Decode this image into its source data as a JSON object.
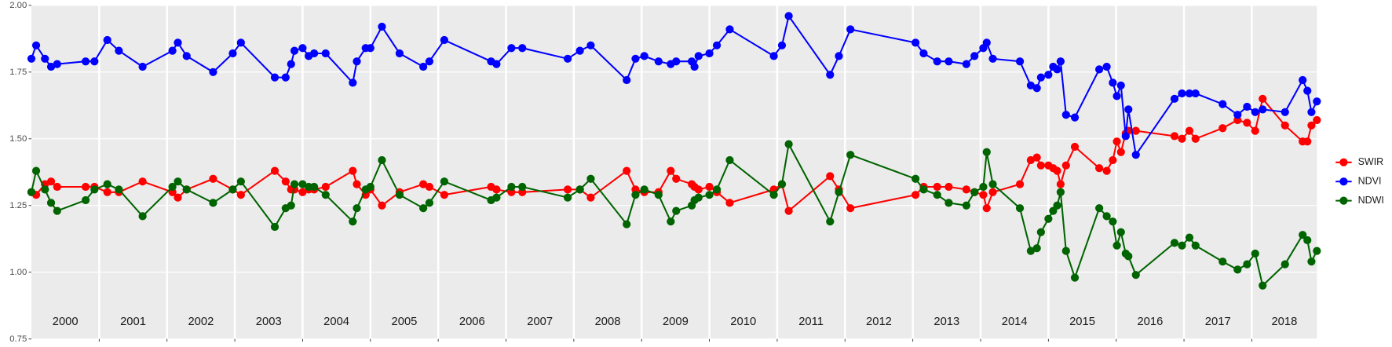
{
  "chart_data": {
    "type": "line",
    "x": [
      2000.0,
      2000.07,
      2000.2,
      2000.29,
      2000.38,
      2000.8,
      2000.93,
      2001.12,
      2001.29,
      2001.64,
      2002.08,
      2002.16,
      2002.29,
      2002.68,
      2002.97,
      2003.09,
      2003.59,
      2003.75,
      2003.83,
      2003.88,
      2004.0,
      2004.09,
      2004.17,
      2004.34,
      2004.74,
      2004.8,
      2004.93,
      2005.0,
      2005.17,
      2005.43,
      2005.78,
      2005.87,
      2006.09,
      2006.78,
      2006.86,
      2007.08,
      2007.24,
      2007.91,
      2008.09,
      2008.25,
      2008.78,
      2008.91,
      2009.04,
      2009.25,
      2009.43,
      2009.51,
      2009.74,
      2009.78,
      2009.84,
      2010.0,
      2010.11,
      2010.3,
      2010.95,
      2011.07,
      2011.17,
      2011.78,
      2011.91,
      2012.08,
      2013.04,
      2013.16,
      2013.36,
      2013.53,
      2013.79,
      2013.91,
      2014.04,
      2014.09,
      2014.18,
      2014.58,
      2014.74,
      2014.83,
      2014.89,
      2015.0,
      2015.07,
      2015.13,
      2015.18,
      2015.26,
      2015.39,
      2015.75,
      2015.86,
      2015.95,
      2016.01,
      2016.07,
      2016.14,
      2016.18,
      2016.29,
      2016.86,
      2016.97,
      2017.08,
      2017.17,
      2017.57,
      2017.79,
      2017.93,
      2018.05,
      2018.16,
      2018.49,
      2018.75,
      2018.82,
      2018.88,
      2018.96
    ],
    "series": [
      {
        "name": "SWIR",
        "color": "#ff0000",
        "values": [
          1.3,
          1.29,
          1.33,
          1.34,
          1.32,
          1.32,
          1.32,
          1.3,
          1.3,
          1.34,
          1.3,
          1.28,
          1.31,
          1.35,
          1.31,
          1.29,
          1.38,
          1.34,
          1.31,
          1.31,
          1.3,
          1.31,
          1.31,
          1.32,
          1.38,
          1.33,
          1.29,
          1.31,
          1.25,
          1.3,
          1.33,
          1.32,
          1.29,
          1.32,
          1.31,
          1.3,
          1.3,
          1.31,
          1.31,
          1.28,
          1.38,
          1.31,
          1.3,
          1.3,
          1.38,
          1.35,
          1.33,
          1.32,
          1.31,
          1.32,
          1.3,
          1.26,
          1.31,
          1.33,
          1.23,
          1.36,
          1.31,
          1.24,
          1.29,
          1.32,
          1.32,
          1.32,
          1.31,
          1.3,
          1.29,
          1.24,
          1.3,
          1.33,
          1.42,
          1.43,
          1.4,
          1.4,
          1.39,
          1.38,
          1.33,
          1.4,
          1.47,
          1.39,
          1.38,
          1.42,
          1.49,
          1.45,
          1.52,
          1.53,
          1.53,
          1.51,
          1.5,
          1.53,
          1.5,
          1.54,
          1.57,
          1.56,
          1.53,
          1.65,
          1.55,
          1.49,
          1.49,
          1.55,
          1.57
        ]
      },
      {
        "name": "NDVI",
        "color": "#0000ff",
        "values": [
          1.8,
          1.85,
          1.8,
          1.77,
          1.78,
          1.79,
          1.79,
          1.87,
          1.83,
          1.77,
          1.83,
          1.86,
          1.81,
          1.75,
          1.82,
          1.86,
          1.73,
          1.73,
          1.78,
          1.83,
          1.84,
          1.81,
          1.82,
          1.82,
          1.71,
          1.79,
          1.84,
          1.84,
          1.92,
          1.82,
          1.77,
          1.79,
          1.87,
          1.79,
          1.78,
          1.84,
          1.84,
          1.8,
          1.83,
          1.85,
          1.72,
          1.8,
          1.81,
          1.79,
          1.78,
          1.79,
          1.79,
          1.77,
          1.81,
          1.82,
          1.85,
          1.91,
          1.81,
          1.85,
          1.96,
          1.74,
          1.81,
          1.91,
          1.86,
          1.82,
          1.79,
          1.79,
          1.78,
          1.81,
          1.84,
          1.86,
          1.8,
          1.79,
          1.7,
          1.69,
          1.73,
          1.74,
          1.77,
          1.76,
          1.79,
          1.59,
          1.58,
          1.76,
          1.77,
          1.71,
          1.66,
          1.7,
          1.51,
          1.61,
          1.44,
          1.65,
          1.67,
          1.67,
          1.67,
          1.63,
          1.59,
          1.62,
          1.6,
          1.61,
          1.6,
          1.72,
          1.68,
          1.6,
          1.64
        ]
      },
      {
        "name": "NDWI",
        "color": "#006400",
        "values": [
          1.3,
          1.38,
          1.31,
          1.26,
          1.23,
          1.27,
          1.31,
          1.33,
          1.31,
          1.21,
          1.32,
          1.34,
          1.31,
          1.26,
          1.31,
          1.34,
          1.17,
          1.24,
          1.25,
          1.33,
          1.33,
          1.32,
          1.32,
          1.29,
          1.19,
          1.24,
          1.31,
          1.32,
          1.42,
          1.29,
          1.24,
          1.26,
          1.34,
          1.27,
          1.28,
          1.32,
          1.32,
          1.28,
          1.31,
          1.35,
          1.18,
          1.29,
          1.31,
          1.29,
          1.19,
          1.23,
          1.25,
          1.27,
          1.28,
          1.29,
          1.31,
          1.42,
          1.29,
          1.33,
          1.48,
          1.19,
          1.3,
          1.44,
          1.35,
          1.31,
          1.29,
          1.26,
          1.25,
          1.3,
          1.32,
          1.45,
          1.33,
          1.24,
          1.08,
          1.09,
          1.15,
          1.2,
          1.23,
          1.25,
          1.3,
          1.08,
          0.98,
          1.24,
          1.21,
          1.19,
          1.1,
          1.15,
          1.07,
          1.06,
          0.99,
          1.11,
          1.1,
          1.13,
          1.1,
          1.04,
          1.01,
          1.03,
          1.07,
          0.95,
          1.03,
          1.14,
          1.12,
          1.04,
          1.08
        ]
      }
    ],
    "xlim": [
      2000,
      2018.96
    ],
    "xticks": [
      2001,
      2002,
      2003,
      2004,
      2005,
      2006,
      2007,
      2008,
      2009,
      2010,
      2011,
      2012,
      2013,
      2014,
      2015,
      2016,
      2017,
      2018
    ],
    "year_labels": [
      "2000",
      "2001",
      "2002",
      "2003",
      "2004",
      "2005",
      "2006",
      "2007",
      "2008",
      "2009",
      "2010",
      "2011",
      "2012",
      "2013",
      "2014",
      "2015",
      "2016",
      "2017",
      "2018"
    ],
    "ylim": [
      0.75,
      2.0
    ],
    "yticks": [
      {
        "value": 0.75,
        "label": "0.75"
      },
      {
        "value": 1.0,
        "label": "1.00"
      },
      {
        "value": 1.25,
        "label": "1.25"
      },
      {
        "value": 1.5,
        "label": "1.50"
      },
      {
        "value": 1.75,
        "label": "1.75"
      },
      {
        "value": 2.0,
        "label": "2.00"
      }
    ],
    "grid": true,
    "legend": "right"
  }
}
